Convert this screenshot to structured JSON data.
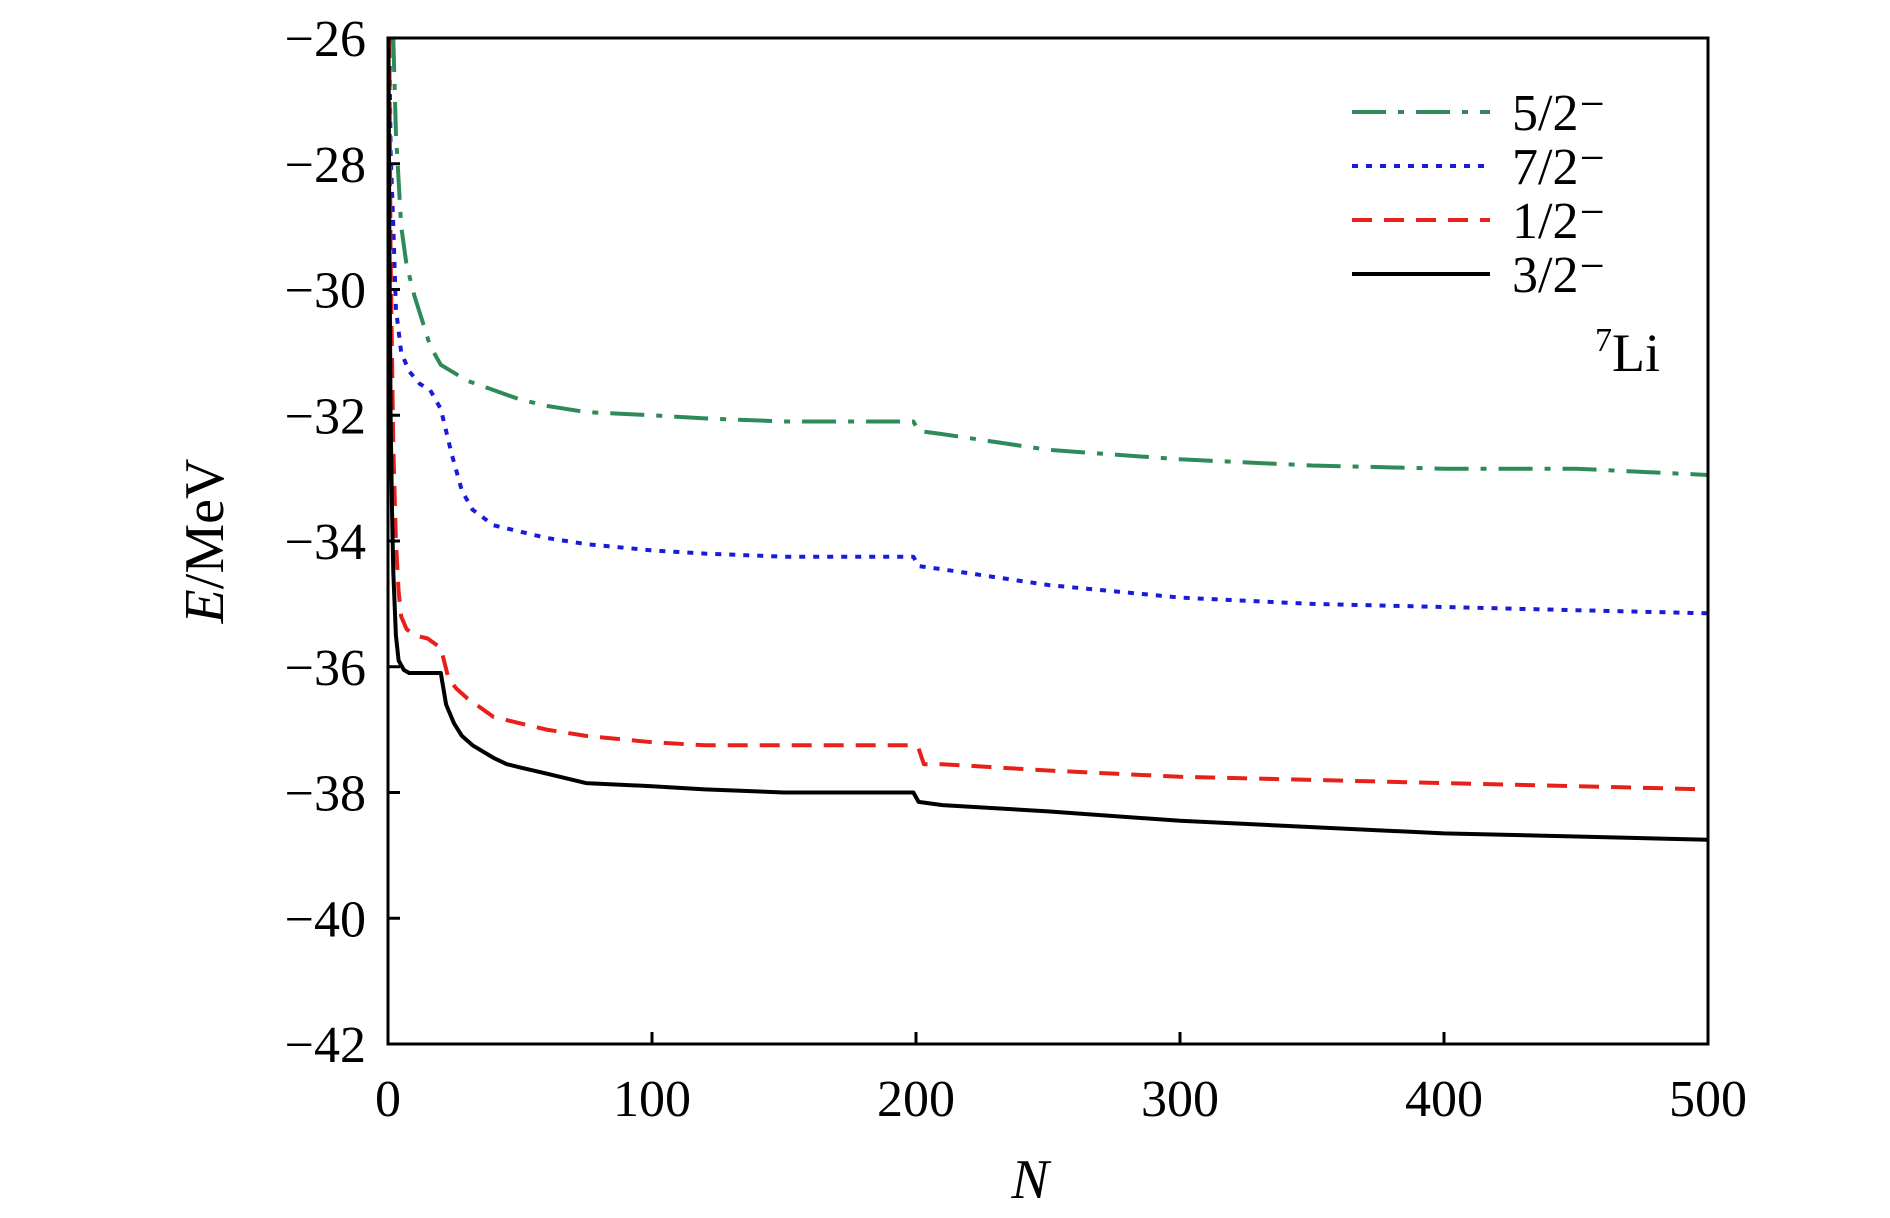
{
  "chart_data": {
    "type": "line",
    "xlabel": "N",
    "ylabel_italic": "E",
    "ylabel_rest": "/MeV",
    "xlim": [
      0,
      500
    ],
    "ylim": [
      -42,
      -26
    ],
    "xticks": [
      "0",
      "100",
      "200",
      "300",
      "400",
      "500"
    ],
    "xtick_values": [
      0,
      100,
      200,
      300,
      400,
      500
    ],
    "yticks": [
      "−26",
      "−28",
      "−30",
      "−32",
      "−34",
      "−36",
      "−38",
      "−40",
      "−42"
    ],
    "ytick_values": [
      -26,
      -28,
      -30,
      -32,
      -34,
      -36,
      -38,
      -40,
      -42
    ],
    "grid": false,
    "legend_position": "top-right",
    "annotation": {
      "sup": "7",
      "text": "Li"
    },
    "series": [
      {
        "name": "5/2⁻",
        "color": "#2e8b57",
        "dash": "dashdot",
        "x": [
          2,
          3,
          5,
          7,
          10,
          13,
          16,
          20,
          24,
          30,
          40,
          50,
          60,
          75,
          100,
          120,
          150,
          199,
          201,
          210,
          250,
          300,
          350,
          400,
          450,
          500
        ],
        "y": [
          -26.0,
          -27.5,
          -29.0,
          -29.6,
          -30.1,
          -30.5,
          -30.9,
          -31.2,
          -31.3,
          -31.45,
          -31.6,
          -31.75,
          -31.85,
          -31.95,
          -32.0,
          -32.05,
          -32.1,
          -32.1,
          -32.25,
          -32.3,
          -32.55,
          -32.7,
          -32.8,
          -32.85,
          -32.85,
          -32.95
        ]
      },
      {
        "name": "7/2⁻",
        "color": "#1a1adb",
        "dash": "dotted",
        "x": [
          0.5,
          1,
          2,
          3,
          5,
          8,
          12,
          16,
          20,
          24,
          28,
          32,
          40,
          50,
          60,
          75,
          100,
          120,
          150,
          199,
          201,
          210,
          250,
          300,
          350,
          400,
          450,
          500
        ],
        "y": [
          -26.0,
          -27.8,
          -29.0,
          -30.3,
          -31.0,
          -31.3,
          -31.5,
          -31.6,
          -31.9,
          -32.6,
          -33.2,
          -33.5,
          -33.75,
          -33.85,
          -33.95,
          -34.05,
          -34.15,
          -34.2,
          -34.25,
          -34.25,
          -34.4,
          -34.45,
          -34.7,
          -34.9,
          -35.0,
          -35.05,
          -35.1,
          -35.15
        ]
      },
      {
        "name": "1/2⁻",
        "color": "#e8201a",
        "dash": "dashed",
        "x": [
          0.5,
          1,
          2,
          3,
          4,
          5,
          7,
          10,
          15,
          20,
          23,
          26,
          30,
          40,
          50,
          60,
          75,
          100,
          120,
          150,
          199,
          201,
          203,
          210,
          250,
          300,
          350,
          400,
          450,
          500
        ],
        "y": [
          -26.0,
          -29.5,
          -32.5,
          -34.0,
          -34.8,
          -35.2,
          -35.4,
          -35.5,
          -35.55,
          -35.7,
          -36.2,
          -36.35,
          -36.5,
          -36.8,
          -36.9,
          -37.0,
          -37.1,
          -37.2,
          -37.25,
          -37.25,
          -37.25,
          -37.3,
          -37.55,
          -37.55,
          -37.65,
          -37.75,
          -37.8,
          -37.85,
          -37.9,
          -37.95
        ]
      },
      {
        "name": "3/2⁻",
        "color": "#000000",
        "dash": "solid",
        "x": [
          0.2,
          0.5,
          1,
          1.5,
          2,
          3,
          4,
          6,
          8,
          12,
          16,
          20,
          22,
          25,
          28,
          32,
          40,
          45,
          50,
          60,
          75,
          100,
          120,
          150,
          199,
          201,
          210,
          250,
          300,
          350,
          400,
          450,
          500
        ],
        "y": [
          -26.0,
          -29.0,
          -32.0,
          -33.5,
          -34.5,
          -35.5,
          -35.9,
          -36.05,
          -36.1,
          -36.1,
          -36.1,
          -36.1,
          -36.6,
          -36.9,
          -37.1,
          -37.25,
          -37.45,
          -37.55,
          -37.6,
          -37.7,
          -37.85,
          -37.9,
          -37.95,
          -38.0,
          -38.0,
          -38.15,
          -38.2,
          -38.3,
          -38.45,
          -38.55,
          -38.65,
          -38.7,
          -38.75
        ]
      }
    ]
  }
}
